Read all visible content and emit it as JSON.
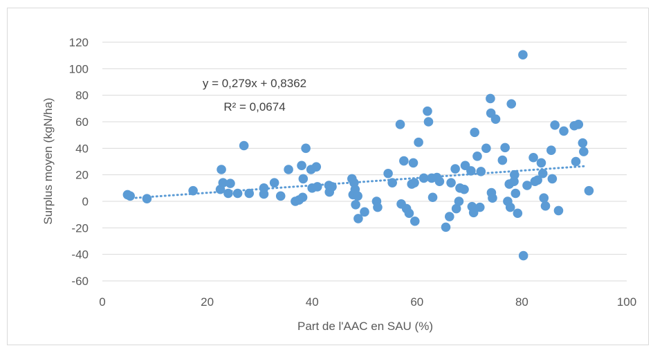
{
  "chart_data": {
    "type": "scatter",
    "title": "",
    "xlabel": "Part de l'AAC en SAU (%)",
    "ylabel": "Surplus moyen (kgN/ha)",
    "xlim": [
      0,
      100
    ],
    "ylim": [
      -60,
      120
    ],
    "x_ticks": [
      0,
      20,
      40,
      60,
      80,
      100
    ],
    "y_ticks": [
      -60,
      -40,
      -20,
      0,
      20,
      40,
      60,
      80,
      100,
      120
    ],
    "grid": "horizontal",
    "legend": "none",
    "colors": {
      "points": "#5b9bd5",
      "trendline": "#5b9bd5",
      "grid": "#d9d9d9",
      "text": "#595959"
    },
    "annotations": {
      "equation": "y = 0,279x + 0,8362",
      "r_squared": "R² = 0,0674"
    },
    "trendline": {
      "slope": 0.279,
      "intercept": 0.8362,
      "x_range": [
        4.8,
        92
      ]
    },
    "series": [
      {
        "points": [
          [
            4.8,
            5
          ],
          [
            5.3,
            4
          ],
          [
            8.5,
            2
          ],
          [
            17.3,
            8
          ],
          [
            22.5,
            9
          ],
          [
            22.7,
            24
          ],
          [
            23,
            14
          ],
          [
            24,
            6
          ],
          [
            24.4,
            13.5
          ],
          [
            25.8,
            6
          ],
          [
            27,
            42
          ],
          [
            28,
            6
          ],
          [
            30.8,
            10
          ],
          [
            30.8,
            5.5
          ],
          [
            32.8,
            14
          ],
          [
            34,
            4
          ],
          [
            35.5,
            24
          ],
          [
            36.8,
            0
          ],
          [
            37.5,
            1
          ],
          [
            38,
            27
          ],
          [
            38.2,
            3
          ],
          [
            38.3,
            17
          ],
          [
            38.8,
            40
          ],
          [
            39.8,
            24
          ],
          [
            40,
            10
          ],
          [
            40.8,
            26
          ],
          [
            41,
            11
          ],
          [
            43.2,
            12
          ],
          [
            43.3,
            7
          ],
          [
            43.8,
            11
          ],
          [
            47.6,
            17
          ],
          [
            47.8,
            5
          ],
          [
            48,
            14
          ],
          [
            48.2,
            9
          ],
          [
            48.3,
            -2.5
          ],
          [
            48.7,
            4
          ],
          [
            48.8,
            -13
          ],
          [
            50,
            -8
          ],
          [
            52.3,
            0
          ],
          [
            52.5,
            -4.5
          ],
          [
            54.5,
            21
          ],
          [
            55.3,
            14
          ],
          [
            56.8,
            58
          ],
          [
            57,
            -2
          ],
          [
            57.5,
            30.5
          ],
          [
            58,
            -5.5
          ],
          [
            58.5,
            -9
          ],
          [
            59,
            13
          ],
          [
            59.3,
            29
          ],
          [
            59.5,
            14
          ],
          [
            59.6,
            -15
          ],
          [
            60.3,
            44.5
          ],
          [
            61.3,
            17.5
          ],
          [
            62,
            68
          ],
          [
            62.2,
            60
          ],
          [
            62.8,
            17.5
          ],
          [
            63,
            3
          ],
          [
            63.8,
            18
          ],
          [
            64.3,
            15
          ],
          [
            65.5,
            -19.5
          ],
          [
            66.2,
            -11.5
          ],
          [
            66.5,
            14
          ],
          [
            67.3,
            24.5
          ],
          [
            67.5,
            -5.5
          ],
          [
            68,
            0
          ],
          [
            68.2,
            10
          ],
          [
            69,
            9
          ],
          [
            69.2,
            27
          ],
          [
            70.3,
            23
          ],
          [
            70.5,
            -4
          ],
          [
            70.8,
            -8.5
          ],
          [
            71,
            52
          ],
          [
            71.5,
            34
          ],
          [
            72,
            -4.5
          ],
          [
            72.2,
            22.5
          ],
          [
            73.2,
            40
          ],
          [
            74,
            77.5
          ],
          [
            74.1,
            66.5
          ],
          [
            74.2,
            6.5
          ],
          [
            74.4,
            2.5
          ],
          [
            75,
            62
          ],
          [
            76.3,
            31
          ],
          [
            76.8,
            40.5
          ],
          [
            77.3,
            0
          ],
          [
            77.6,
            13
          ],
          [
            77.8,
            -4.5
          ],
          [
            78,
            73.5
          ],
          [
            78.5,
            15
          ],
          [
            78.6,
            20
          ],
          [
            78.8,
            6
          ],
          [
            79.2,
            -9
          ],
          [
            80.2,
            110.5
          ],
          [
            80.3,
            -41
          ],
          [
            81,
            12
          ],
          [
            82.2,
            33
          ],
          [
            82.5,
            15
          ],
          [
            83,
            16
          ],
          [
            83.7,
            29
          ],
          [
            84,
            21
          ],
          [
            84.2,
            2.5
          ],
          [
            84.5,
            -3.5
          ],
          [
            85.6,
            38.5
          ],
          [
            85.8,
            17
          ],
          [
            86.3,
            57.5
          ],
          [
            87,
            -7
          ],
          [
            88,
            53
          ],
          [
            90,
            57
          ],
          [
            90.3,
            30
          ],
          [
            90.8,
            58
          ],
          [
            91.6,
            44
          ],
          [
            91.8,
            37.5
          ],
          [
            92.8,
            8
          ]
        ]
      }
    ]
  }
}
